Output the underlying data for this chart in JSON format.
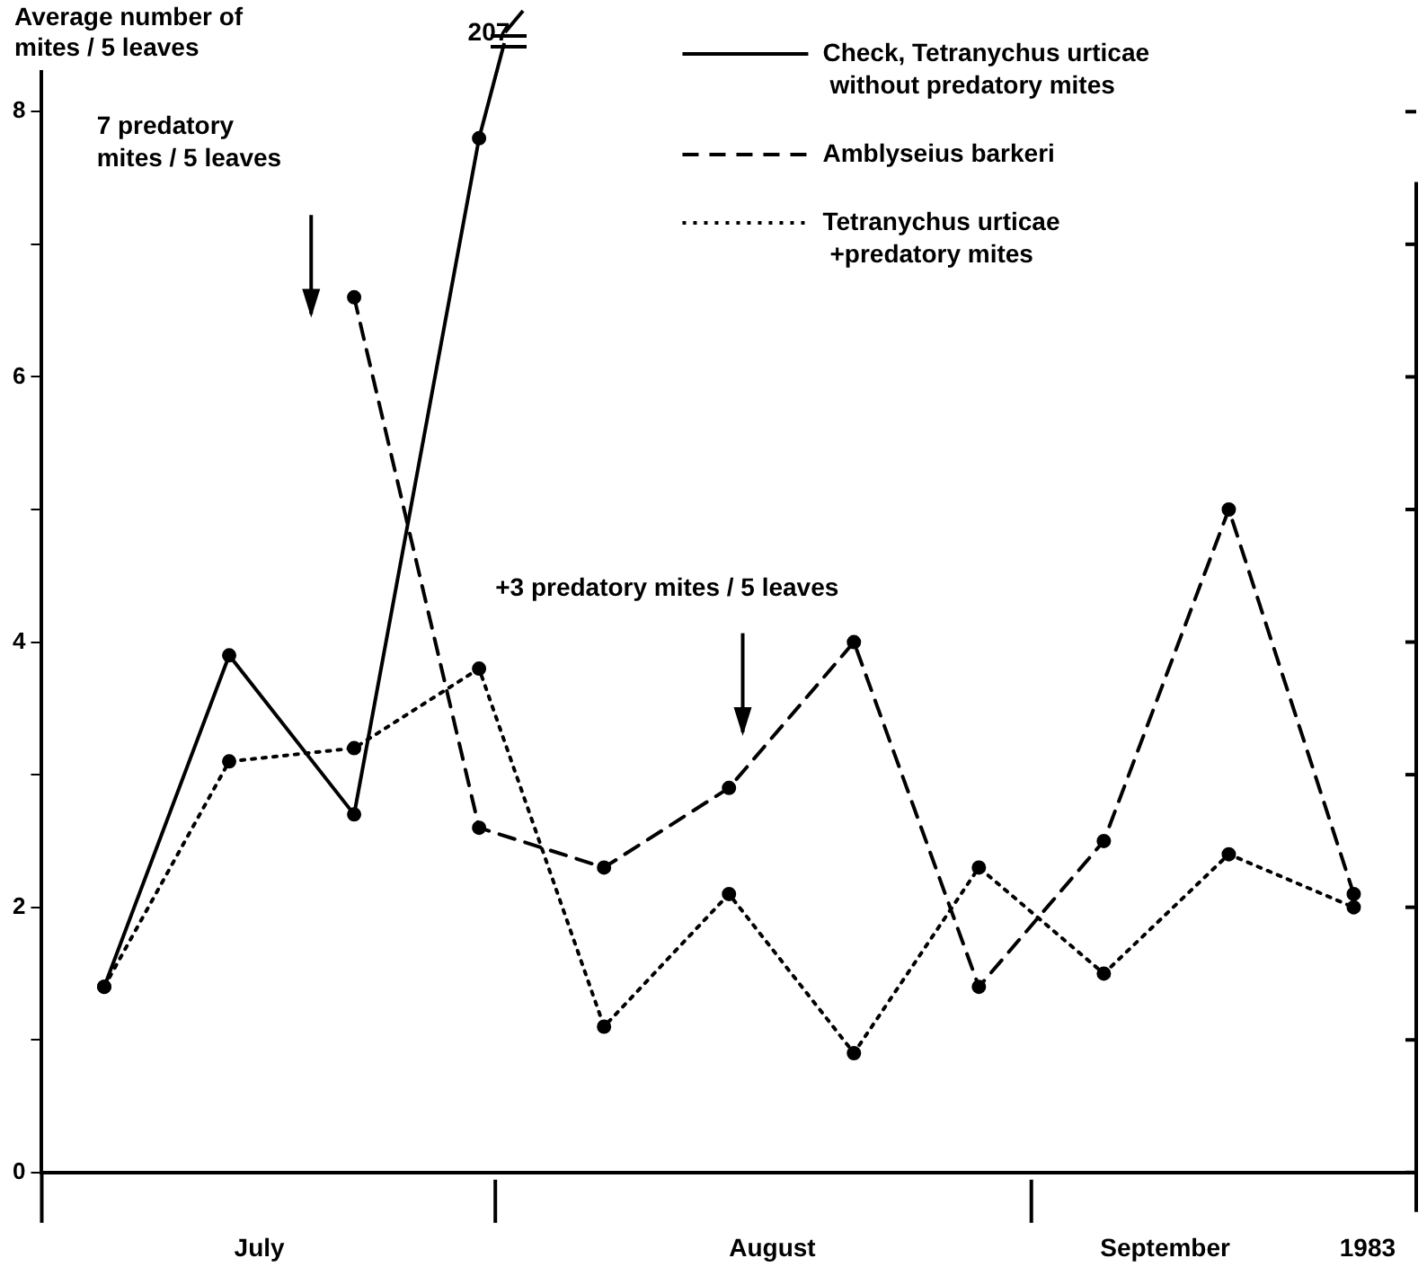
{
  "chart_data": {
    "type": "line",
    "ylabel": "Average number of\nmites / 5 leaves",
    "categories": [
      null,
      null,
      null,
      null,
      null,
      null,
      null,
      null,
      null,
      null,
      null
    ],
    "series": [
      {
        "name": "Check, Tetranychus urticae\nwithout predatory mites",
        "color": "#000000",
        "line_style": "solid",
        "values": [
          1.4,
          3.9,
          2.7,
          7.8,
          null,
          null,
          null,
          null,
          null,
          null,
          null
        ]
      },
      {
        "name": "Amblyseius barkeri",
        "color": "#000000",
        "line_style": "dashed",
        "values": [
          null,
          null,
          6.6,
          2.6,
          2.3,
          2.9,
          4.0,
          1.4,
          2.5,
          5.0,
          2.1
        ]
      },
      {
        "name": "Tetranychus urticae\n+predatory mites",
        "color": "#000000",
        "line_style": "dotted",
        "values": [
          1.4,
          3.1,
          3.2,
          3.8,
          1.1,
          2.1,
          0.9,
          2.3,
          1.5,
          2.4,
          2.0
        ]
      }
    ],
    "ylim": [
      0,
      8.3
    ],
    "yticks": [
      0,
      {
        "value": 1,
        "label": null
      },
      2,
      {
        "value": 3,
        "label": null
      },
      4,
      {
        "value": 5,
        "label": null
      },
      6,
      {
        "value": 7,
        "label": null
      },
      8
    ],
    "marker": "circle",
    "grid": false,
    "legend": "top right",
    "annotations": [
      "7 predatory mites / 5 leaves",
      "+3 predatory mites / 5 leaves",
      "207",
      "July",
      "August",
      "September",
      "1983"
    ]
  }
}
